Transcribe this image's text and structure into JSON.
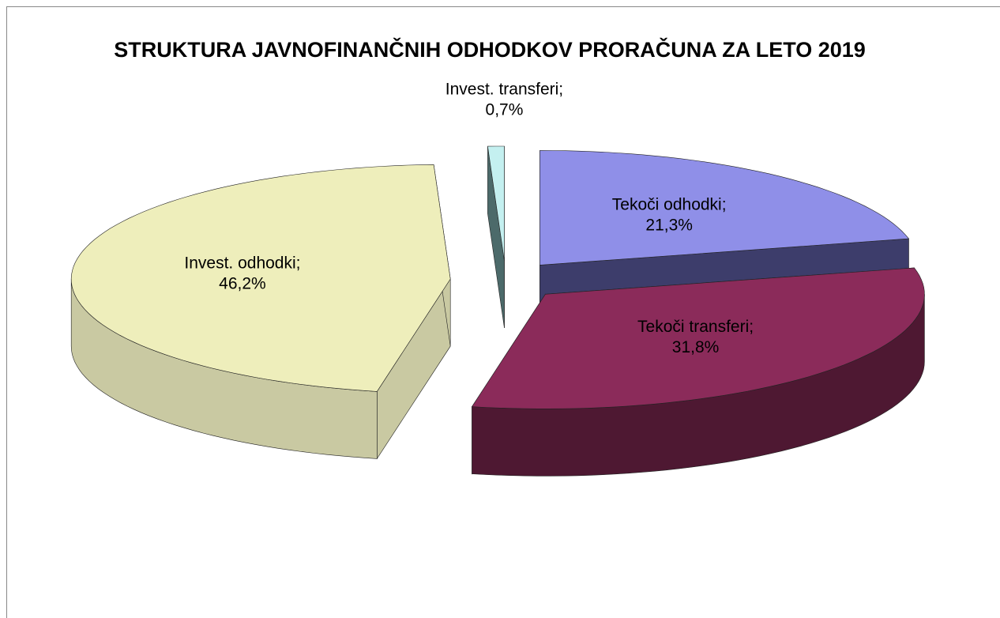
{
  "chart_data": {
    "type": "pie3d",
    "title": "STRUKTURA JAVNOFINANČNIH ODHODKOV PRORAČUNA ZA LETO 2019",
    "categories": [
      "Tekoči odhodki;",
      "Tekoči transferi;",
      "Invest. odhodki;",
      "Invest. transferi;"
    ],
    "values": [
      21.3,
      31.8,
      46.2,
      0.7
    ],
    "value_labels": [
      "21,3%",
      "31,8%",
      "46,2%",
      "0,7%"
    ],
    "colors": [
      "#8f8fe8",
      "#8b2b5a",
      "#eeeebb",
      "#c4f0f0"
    ],
    "side_colors": [
      "#3d3d6b",
      "#4e1832",
      "#c9c9a2",
      "#4c6a6a"
    ]
  }
}
